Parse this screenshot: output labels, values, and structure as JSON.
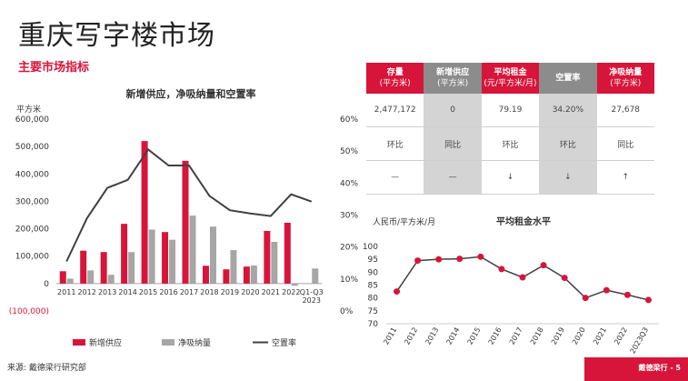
{
  "title": "重庆写字楼市场",
  "subtitle": "主要市场指标",
  "source": "来源: 戴德梁行研究部",
  "footer": "戴德梁行 - 5",
  "colors": {
    "red": "#d7153a",
    "grey": "#a6a6a6",
    "dark": "#404040"
  },
  "kpi_table": {
    "headers": [
      {
        "label": "存量",
        "sub": "(平方米)",
        "style": "red"
      },
      {
        "label": "新增供应",
        "sub": "(平方米)",
        "style": "grey"
      },
      {
        "label": "平均租金",
        "sub": "(元/平方米/月)",
        "style": "red"
      },
      {
        "label": "空置率",
        "sub": "",
        "style": "grey"
      },
      {
        "label": "净吸纳量",
        "sub": "(平方米)",
        "style": "red"
      }
    ],
    "values": [
      "2,477,172",
      "0",
      "79.19",
      "34.20%",
      "27,678"
    ],
    "compare": [
      "环比",
      "同比",
      "环比",
      "环比",
      "同比"
    ],
    "trend": [
      "—",
      "—",
      "↓",
      "↓",
      "↑"
    ]
  },
  "chart_data": [
    {
      "type": "bar",
      "title": "新增供应，净吸纳量和空置率",
      "ylabel": "平方米",
      "ylim": [
        -100000,
        600000
      ],
      "y_ticks": [
        "600,000",
        "500,000",
        "400,000",
        "300,000",
        "200,000",
        "100,000",
        "0",
        "(100,000)"
      ],
      "y2lim": [
        0,
        0.6
      ],
      "y2_ticks": [
        "60%",
        "50%",
        "40%",
        "30%",
        "20%",
        "10%",
        "0%"
      ],
      "categories": [
        "2011",
        "2012",
        "2013",
        "2014",
        "2015",
        "2016",
        "2017",
        "2018",
        "2019",
        "2020",
        "2021",
        "2022",
        "Q1-Q3\n2023"
      ],
      "series": [
        {
          "name": "新增供应",
          "type": "bar",
          "color": "#d7153a",
          "values": [
            45000,
            120000,
            115000,
            218000,
            520000,
            188000,
            448000,
            65000,
            52000,
            62000,
            192000,
            222000,
            0
          ]
        },
        {
          "name": "净吸纳量",
          "type": "bar",
          "color": "#a6a6a6",
          "values": [
            18000,
            48000,
            32000,
            115000,
            197000,
            160000,
            248000,
            208000,
            122000,
            66000,
            152000,
            -8000,
            55000
          ]
        },
        {
          "name": "空置率",
          "type": "line",
          "axis": "right",
          "color": "#404040",
          "values": [
            0.155,
            0.29,
            0.385,
            0.41,
            0.505,
            0.455,
            0.455,
            0.36,
            0.315,
            0.305,
            0.297,
            0.365,
            0.342
          ]
        }
      ]
    },
    {
      "type": "line",
      "title": "平均租金水平",
      "ylabel": "人民币/平方米/月",
      "ylim": [
        70,
        100
      ],
      "y_ticks": [
        "100",
        "95",
        "90",
        "85",
        "80",
        "75",
        "70"
      ],
      "categories": [
        "2011",
        "2012",
        "2013",
        "2014",
        "2015",
        "2016",
        "2017",
        "2018",
        "2019",
        "2020",
        "2021",
        "2022",
        "2023Q3"
      ],
      "series": [
        {
          "name": "平均租金",
          "color": "#d7153a",
          "line_color": "#404040",
          "values": [
            82.5,
            94.5,
            95.0,
            95.2,
            96.0,
            91.2,
            88.0,
            92.7,
            87.8,
            80.0,
            83.0,
            81.2,
            79.2
          ]
        }
      ]
    }
  ]
}
